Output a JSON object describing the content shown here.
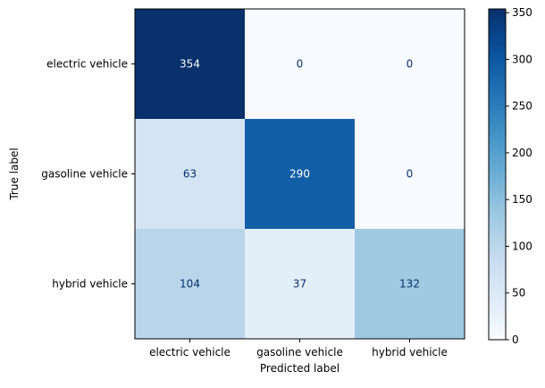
{
  "chart_data": {
    "type": "heatmap",
    "title": "",
    "xlabel": "Predicted label",
    "ylabel": "True label",
    "x_categories": [
      "electric vehicle",
      "gasoline vehicle",
      "hybrid vehicle"
    ],
    "y_categories": [
      "electric vehicle",
      "gasoline vehicle",
      "hybrid vehicle"
    ],
    "values": [
      [
        354,
        0,
        0
      ],
      [
        63,
        290,
        0
      ],
      [
        104,
        37,
        132
      ]
    ],
    "colormap": "Blues",
    "colorbar": {
      "min": 0,
      "max": 354,
      "ticks": [
        0,
        50,
        100,
        150,
        200,
        250,
        300,
        350
      ]
    },
    "text_color_light": "#ffffff",
    "text_color_dark": "#08306b"
  }
}
